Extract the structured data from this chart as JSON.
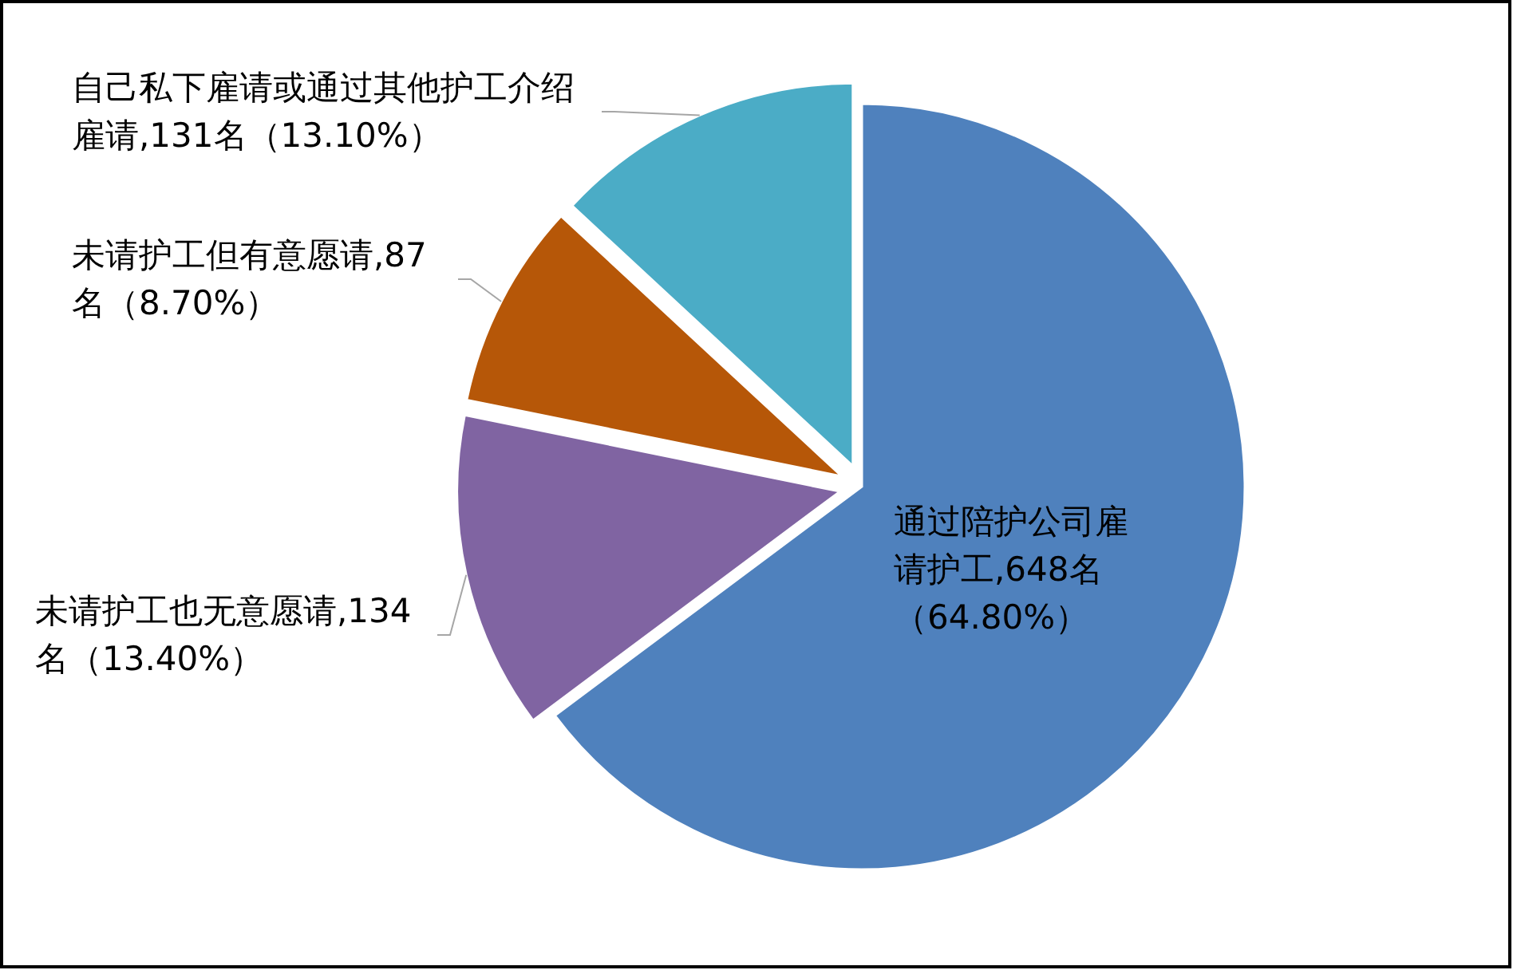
{
  "chart_data": {
    "type": "pie",
    "categories": [
      "通过陪护公司雇请护工",
      "未请护工也无意愿请",
      "未请护工但有意愿请",
      "自己私下雇请或通过其他护工介绍雇请"
    ],
    "values": [
      648,
      134,
      87,
      131
    ],
    "value_labels": [
      "648名（64.80%）",
      "134名（13.40%）",
      "87名（8.70%）",
      "131名（13.10%）"
    ],
    "colors": [
      "#4f81bd",
      "#8064a2",
      "#b65708",
      "#4bacc6"
    ]
  }
}
